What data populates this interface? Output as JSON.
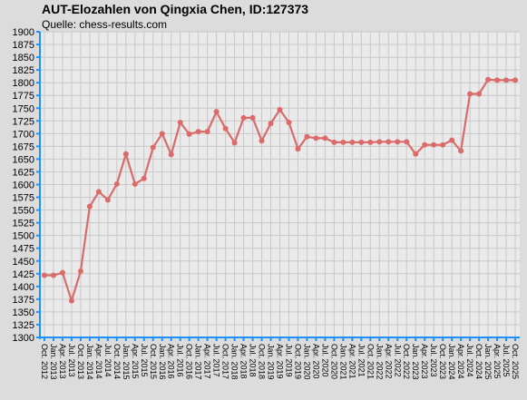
{
  "header": {
    "title": "AUT-Elozahlen von Qingxia Chen, ID:127373",
    "subtitle": "Quelle: chess-results.com"
  },
  "chart_data": {
    "type": "line",
    "title": "AUT-Elozahlen von Qingxia Chen, ID:127373",
    "subtitle": "Quelle: chess-results.com",
    "xlabel": "",
    "ylabel": "",
    "ylim": [
      1300,
      1900
    ],
    "ytick_step": 25,
    "grid": true,
    "legend": "none",
    "x": [
      "Oct. 2012",
      "Jan. 2013",
      "Apr. 2013",
      "Jul. 2013",
      "Oct. 2013",
      "Jan. 2014",
      "Apr. 2014",
      "Jul. 2014",
      "Oct. 2014",
      "Jan. 2015",
      "Apr. 2015",
      "Jul. 2015",
      "Oct. 2015",
      "Jan. 2016",
      "Apr. 2016",
      "Jul. 2016",
      "Oct. 2016",
      "Jan. 2017",
      "Apr. 2017",
      "Jul. 2017",
      "Oct. 2017",
      "Jan. 2018",
      "Apr. 2018",
      "Jul. 2018",
      "Oct. 2018",
      "Jan. 2019",
      "Apr. 2019",
      "Jul. 2019",
      "Oct. 2019",
      "Jan. 2020",
      "Apr. 2020",
      "Jul. 2020",
      "Oct. 2020",
      "Jan. 2021",
      "Apr. 2021",
      "Jul. 2021",
      "Oct. 2021",
      "Jan. 2022",
      "Apr. 2022",
      "Jul. 2022",
      "Oct. 2022",
      "Jan. 2023",
      "Apr. 2023",
      "Jul. 2023",
      "Oct. 2023",
      "Jan. 2024",
      "Apr. 2024",
      "Jul. 2024",
      "Oct. 2024",
      "Jan. 2025",
      "Apr. 2025",
      "Jul. 2025",
      "Oct. 2025"
    ],
    "series": [
      {
        "color": "#d96b6b",
        "values": [
          1422,
          1422,
          1427,
          1372,
          1430,
          1557,
          1586,
          1570,
          1601,
          1660,
          1601,
          1612,
          1673,
          1700,
          1659,
          1722,
          1699,
          1704,
          1704,
          1743,
          1710,
          1682,
          1731,
          1731,
          1686,
          1720,
          1747,
          1722,
          1670,
          1694,
          1691,
          1691,
          1683,
          1683,
          1683,
          1683,
          1683,
          1684,
          1684,
          1684,
          1684,
          1660,
          1678,
          1678,
          1678,
          1687,
          1666,
          1778,
          1778,
          1806,
          1805,
          1805,
          1805
        ]
      }
    ]
  }
}
